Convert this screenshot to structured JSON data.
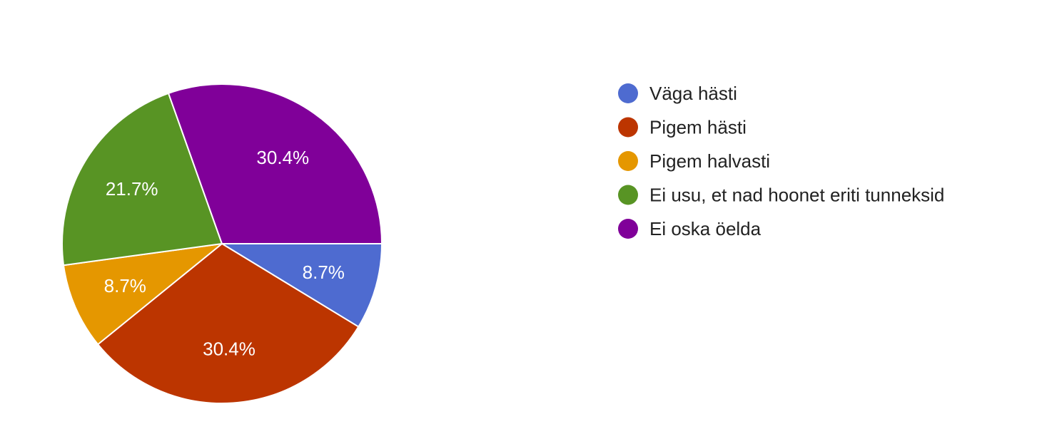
{
  "chart_data": {
    "type": "pie",
    "start_angle_deg": 90,
    "direction": "clockwise",
    "legend_position": "right",
    "slices": [
      {
        "label": "Väga hästi",
        "value": 8.7,
        "display": "8.7%",
        "color": "#4e6bd0"
      },
      {
        "label": "Pigem hästi",
        "value": 30.4,
        "display": "30.4%",
        "color": "#bc3500"
      },
      {
        "label": "Pigem halvasti",
        "value": 8.7,
        "display": "8.7%",
        "color": "#e59700"
      },
      {
        "label": "Ei usu, et nad hoonet eriti tunneksid",
        "value": 21.7,
        "display": "21.7%",
        "color": "#589424"
      },
      {
        "label": "Ei oska öelda",
        "value": 30.4,
        "display": "30.4%",
        "color": "#800099"
      }
    ]
  }
}
